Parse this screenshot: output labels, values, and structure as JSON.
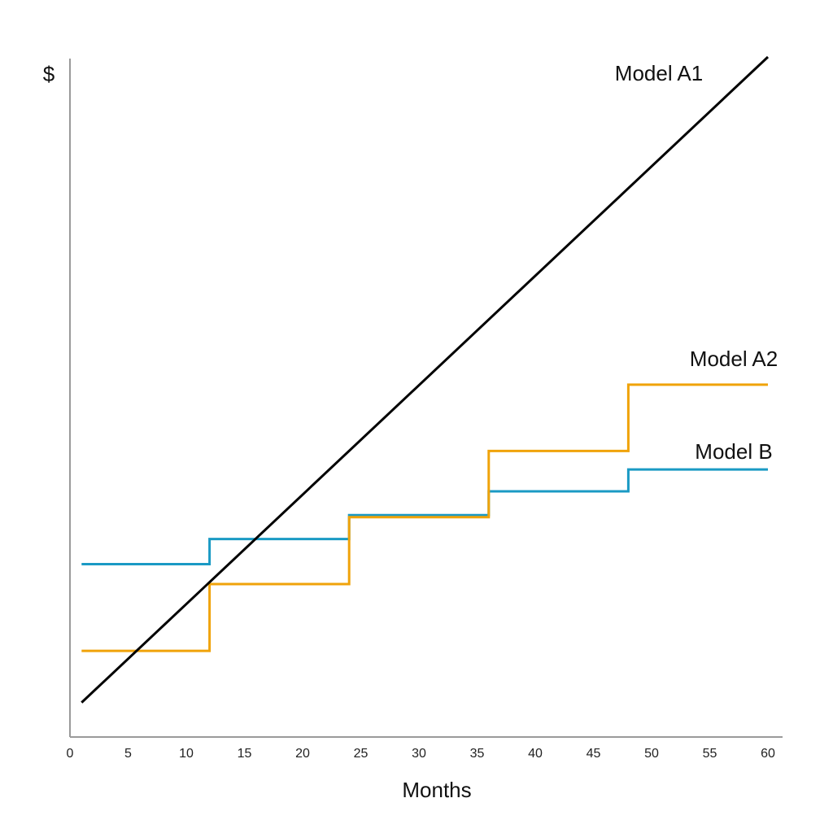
{
  "chart_data": {
    "type": "line",
    "xlabel": "Months",
    "ylabel": "$",
    "xlim": [
      0,
      61
    ],
    "ylim": [
      0,
      100
    ],
    "xticks": [
      0,
      5,
      10,
      15,
      20,
      25,
      30,
      35,
      40,
      45,
      50,
      55,
      60
    ],
    "grid": false,
    "series": [
      {
        "name": "Model A1",
        "color": "#000000",
        "step": false,
        "x": [
          1,
          60
        ],
        "y": [
          2.5,
          100
        ]
      },
      {
        "name": "Model A2",
        "color": "#f0a30a",
        "step": true,
        "x": [
          1,
          12,
          24,
          36,
          48,
          60
        ],
        "y": [
          10.3,
          20.4,
          30.5,
          40.5,
          50.5,
          50.5
        ]
      },
      {
        "name": "Model B",
        "color": "#1a9ac4",
        "step": true,
        "x": [
          1,
          12,
          24,
          36,
          48,
          60
        ],
        "y": [
          23.4,
          27.2,
          30.8,
          34.4,
          37.7,
          37.7
        ]
      }
    ]
  }
}
